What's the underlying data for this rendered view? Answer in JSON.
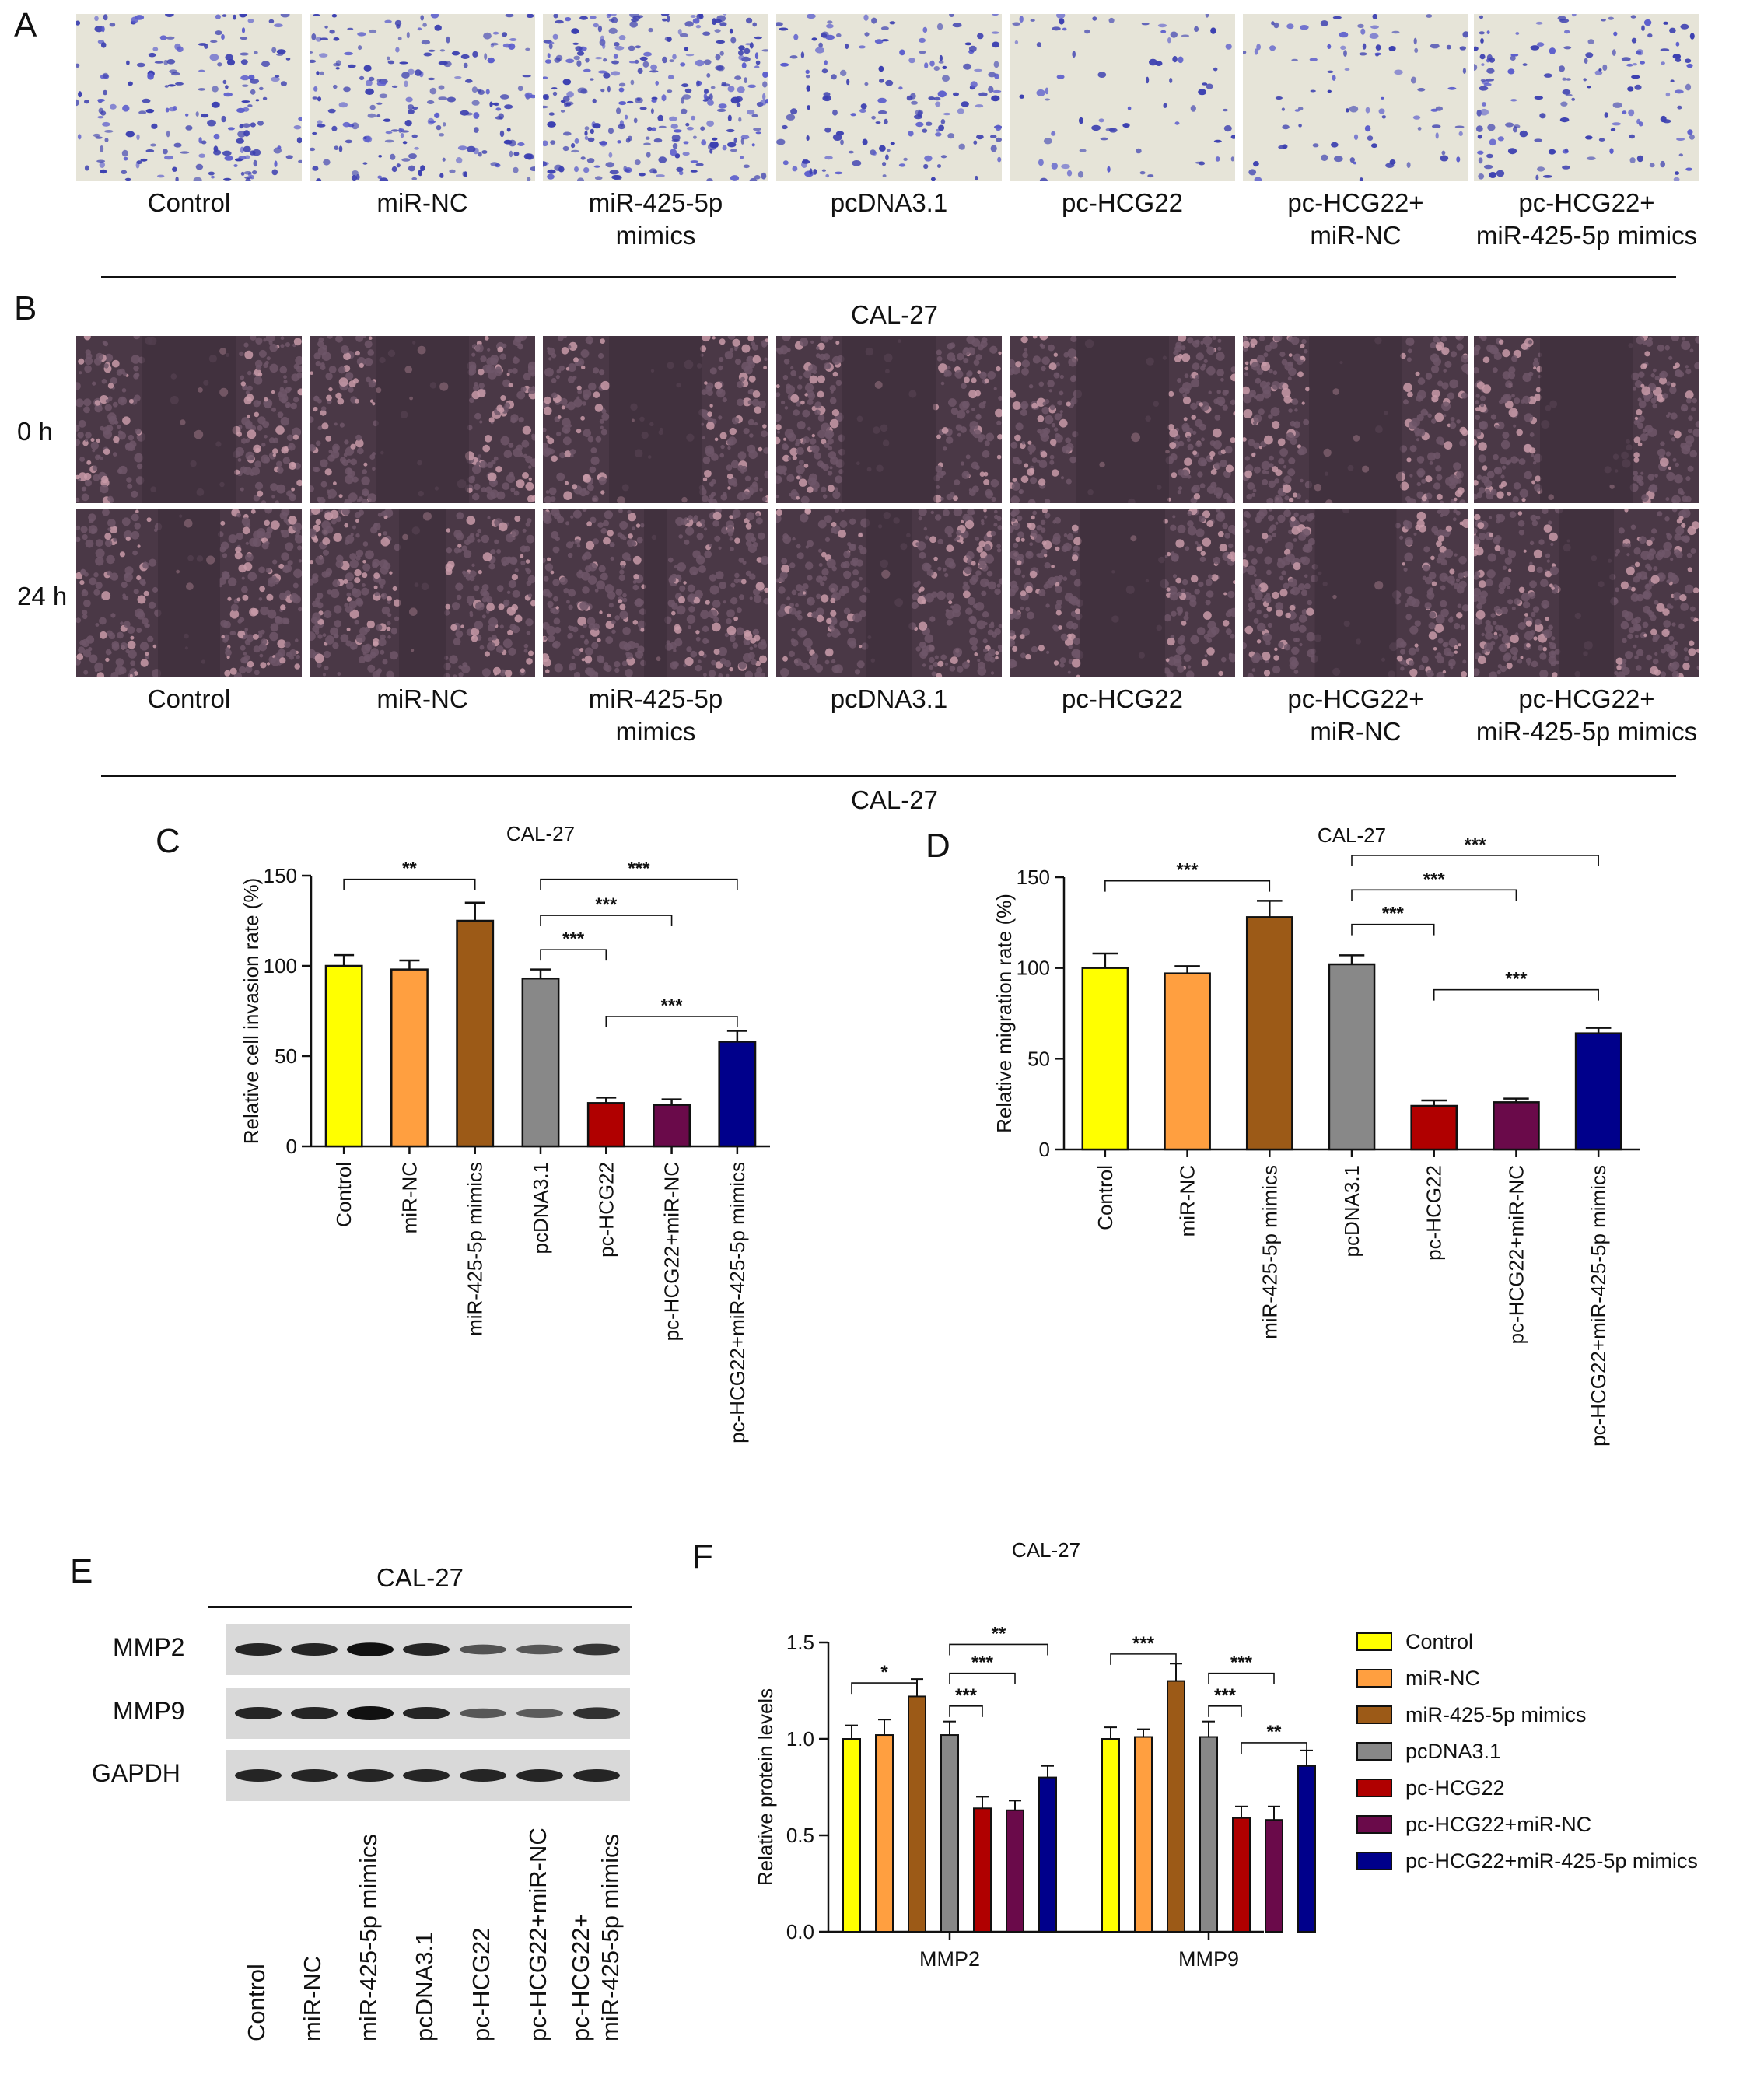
{
  "panelA": {
    "letter": "A",
    "groups": [
      "Control",
      "miR-NC",
      "miR-425-5p\nmimics",
      "pcDNA3.1",
      "pc-HCG22",
      "pc-HCG22+\nmiR-NC",
      "pc-HCG22+\nmiR-425-5p mimics"
    ],
    "density": [
      0.55,
      0.6,
      0.95,
      0.45,
      0.12,
      0.18,
      0.38
    ]
  },
  "panelB": {
    "letter": "B",
    "title": "CAL-27",
    "row_labels": [
      "0 h",
      "24 h"
    ],
    "groups": [
      "Control",
      "miR-NC",
      "miR-425-5p\nmimics",
      "pcDNA3.1",
      "pc-HCG22",
      "pc-HCG22+\nmiR-NC",
      "pc-HCG22+\nmiR-425-5p mimics"
    ]
  },
  "panelE": {
    "letter": "E",
    "title": "CAL-27",
    "rows": [
      "MMP2",
      "MMP9",
      "GAPDH"
    ],
    "lanes": [
      "Control",
      "miR-NC",
      "miR-425-5p mimics",
      "pcDNA3.1",
      "pc-HCG22",
      "pc-HCG22+miR-NC",
      "pc-HCG22+\nmiR-425-5p mimics"
    ],
    "band_intensity": {
      "MMP2": [
        1.0,
        1.0,
        1.2,
        1.0,
        0.6,
        0.55,
        0.85
      ],
      "MMP9": [
        1.0,
        1.0,
        1.25,
        1.0,
        0.55,
        0.5,
        0.9
      ],
      "GAPDH": [
        1.0,
        1.0,
        1.0,
        1.0,
        1.0,
        1.0,
        1.0
      ]
    }
  },
  "colors": [
    "#ffff00",
    "#ff9f40",
    "#9c5a17",
    "#888888",
    "#b00000",
    "#6a0a4a",
    "#00008b"
  ],
  "divider_title": "CAL-27",
  "chart_data": [
    {
      "id": "C",
      "letter": "C",
      "type": "bar",
      "title": "CAL-27",
      "ylabel": "Relative cell invasion rate (%)",
      "xlabel": "",
      "ylim": [
        0,
        150
      ],
      "yticks": [
        0,
        50,
        100,
        150
      ],
      "categories": [
        "Control",
        "miR-NC",
        "miR-425-5p mimics",
        "pcDNA3.1",
        "pc-HCG22",
        "pc-HCG22+miR-NC",
        "pc-HCG22+miR-425-5p mimics"
      ],
      "values": [
        100,
        98,
        125,
        93,
        24,
        23,
        58
      ],
      "errors": [
        6,
        5,
        10,
        5,
        3,
        3,
        6
      ],
      "significance": [
        {
          "from": 0,
          "to": 2,
          "label": "**",
          "y": 148
        },
        {
          "from": 3,
          "to": 6,
          "label": "***",
          "y": 148
        },
        {
          "from": 3,
          "to": 5,
          "label": "***",
          "y": 128
        },
        {
          "from": 3,
          "to": 4,
          "label": "***",
          "y": 109
        },
        {
          "from": 4,
          "to": 6,
          "label": "***",
          "y": 72
        }
      ]
    },
    {
      "id": "D",
      "letter": "D",
      "type": "bar",
      "title": "CAL-27",
      "ylabel": "Relative migration rate (%)",
      "xlabel": "",
      "ylim": [
        0,
        150
      ],
      "yticks": [
        0,
        50,
        100,
        150
      ],
      "categories": [
        "Control",
        "miR-NC",
        "miR-425-5p mimics",
        "pcDNA3.1",
        "pc-HCG22",
        "pc-HCG22+miR-NC",
        "pc-HCG22+miR-425-5p mimics"
      ],
      "values": [
        100,
        97,
        128,
        102,
        24,
        26,
        64
      ],
      "errors": [
        8,
        4,
        9,
        5,
        3,
        2,
        3
      ],
      "significance": [
        {
          "from": 0,
          "to": 2,
          "label": "***",
          "y": 148
        },
        {
          "from": 3,
          "to": 6,
          "label": "***",
          "y": 162
        },
        {
          "from": 3,
          "to": 5,
          "label": "***",
          "y": 143
        },
        {
          "from": 3,
          "to": 4,
          "label": "***",
          "y": 124
        },
        {
          "from": 4,
          "to": 6,
          "label": "***",
          "y": 88
        }
      ]
    },
    {
      "id": "F",
      "letter": "F",
      "type": "bar",
      "title": "CAL-27",
      "ylabel": "Relative protein levels",
      "xlabel": "",
      "ylim": [
        0,
        1.5
      ],
      "yticks": [
        0.0,
        0.5,
        1.0,
        1.5
      ],
      "ytick_labels": [
        "0.0",
        "0.5",
        "1.0",
        "1.5"
      ],
      "categories": [
        "MMP2",
        "MMP9"
      ],
      "legend_position": "right",
      "series": [
        {
          "name": "Control",
          "values": [
            1.0,
            1.0
          ],
          "errors": [
            0.07,
            0.06
          ]
        },
        {
          "name": "miR-NC",
          "values": [
            1.02,
            1.01
          ],
          "errors": [
            0.08,
            0.04
          ]
        },
        {
          "name": "miR-425-5p mimics",
          "values": [
            1.22,
            1.3
          ],
          "errors": [
            0.09,
            0.09
          ]
        },
        {
          "name": "pcDNA3.1",
          "values": [
            1.02,
            1.01
          ],
          "errors": [
            0.07,
            0.08
          ]
        },
        {
          "name": "pc-HCG22",
          "values": [
            0.64,
            0.59
          ],
          "errors": [
            0.06,
            0.06
          ]
        },
        {
          "name": "pc-HCG22+miR-NC",
          "values": [
            0.63,
            0.58
          ],
          "errors": [
            0.05,
            0.07
          ]
        },
        {
          "name": "pc-HCG22+miR-425-5p mimics",
          "values": [
            0.8,
            0.86
          ],
          "errors": [
            0.06,
            0.08
          ]
        }
      ],
      "significance": [
        {
          "group": 0,
          "from": 0,
          "to": 2,
          "label": "*",
          "y": 1.29
        },
        {
          "group": 0,
          "from": 3,
          "to": 6,
          "label": "**",
          "y": 1.49
        },
        {
          "group": 0,
          "from": 3,
          "to": 5,
          "label": "***",
          "y": 1.34
        },
        {
          "group": 0,
          "from": 3,
          "to": 4,
          "label": "***",
          "y": 1.17
        },
        {
          "group": 1,
          "from": 0,
          "to": 2,
          "label": "***",
          "y": 1.44
        },
        {
          "group": 1,
          "from": 3,
          "to": 5,
          "label": "***",
          "y": 1.34
        },
        {
          "group": 1,
          "from": 3,
          "to": 4,
          "label": "***",
          "y": 1.17
        },
        {
          "group": 1,
          "from": 4,
          "to": 6,
          "label": "**",
          "y": 0.98
        }
      ]
    }
  ]
}
